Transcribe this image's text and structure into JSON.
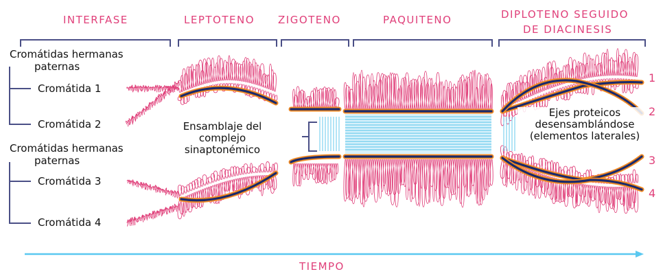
{
  "stages": [
    "INTERFASE",
    "LEPTOTENO",
    "ZIGOTENO",
    "PAQUITENO",
    "DIPLOTENO SEGUIDO",
    "DE DIACINESIS"
  ],
  "left_labels": {
    "group1": [
      "Cromátidas hermanas",
      "paternas"
    ],
    "chromatid1": "Cromátida 1",
    "chromatid2": "Cromátida 2",
    "group2": [
      "Cromátidas hermanas",
      "paternas"
    ],
    "chromatid3": "Cromátida 3",
    "chromatid4": "Cromátida 4"
  },
  "center_label": [
    "Ensamblaje del",
    "complejo",
    "sinaptonémico"
  ],
  "right_label": [
    "Ejes proteicos",
    "desensamblándose",
    "(elementos laterales)"
  ],
  "numbers": [
    "1",
    "2",
    "3",
    "4"
  ],
  "time_label": "TIEMPO",
  "colors": {
    "pink": "#e0407a",
    "navy": "#1a2a6c",
    "orange": "#f08a24",
    "cyan": "#7fd3f0",
    "bracket": "#4a4f86",
    "arrow": "#5ac8f0"
  }
}
